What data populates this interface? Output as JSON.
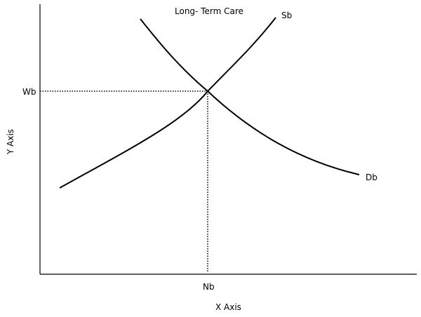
{
  "diagram": {
    "title": "Long- Term Care",
    "x_axis_label": "X Axis",
    "y_axis_label": "Y Axis",
    "supply_curve_label": "Sb",
    "demand_curve_label": "Db",
    "equilibrium_wage_label": "Wb",
    "equilibrium_quantity_label": "Nb",
    "colors": {
      "background": "#ffffff",
      "lines": "#000000"
    }
  }
}
